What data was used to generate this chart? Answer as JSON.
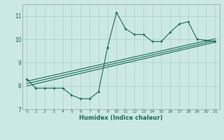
{
  "xlabel": "Humidex (Indice chaleur)",
  "bg_color": "#cce8e4",
  "line_color": "#1a6b5a",
  "grid_color": "#aed4cf",
  "x_data": [
    0,
    1,
    2,
    3,
    4,
    5,
    6,
    7,
    8,
    9,
    10,
    11,
    12,
    13,
    14,
    15,
    16,
    17,
    18,
    19,
    20,
    21
  ],
  "y_jagged": [
    8.3,
    7.9,
    7.9,
    7.9,
    7.9,
    7.6,
    7.45,
    7.45,
    7.75,
    9.65,
    11.15,
    10.45,
    10.2,
    10.2,
    9.9,
    9.9,
    10.3,
    10.65,
    10.75,
    10.0,
    9.95,
    9.9
  ],
  "y_line1_start": 8.2,
  "y_line1_end": 10.02,
  "y_line2_start": 8.1,
  "y_line2_end": 9.94,
  "y_line3_start": 8.0,
  "y_line3_end": 9.87,
  "xlim": [
    -0.5,
    21.5
  ],
  "ylim": [
    7.0,
    11.5
  ],
  "yticks": [
    7,
    8,
    9,
    10,
    11
  ],
  "xticks": [
    0,
    1,
    2,
    3,
    4,
    5,
    6,
    7,
    8,
    9,
    10,
    11,
    12,
    13,
    14,
    15,
    16,
    17,
    18,
    19,
    20,
    21
  ]
}
